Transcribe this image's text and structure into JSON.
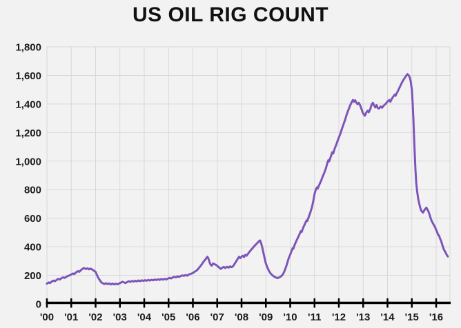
{
  "colors": {
    "background": "#f2f2f2",
    "grid": "#d8d8d8",
    "axis": "#000000",
    "text": "#1b1b1b",
    "line": "#7d55b9"
  },
  "chart_data": {
    "type": "line",
    "title": "US OIL RIG COUNT",
    "xlabel": "",
    "ylabel": "",
    "grid": true,
    "legend": false,
    "ylim": [
      0,
      1800
    ],
    "x_range": [
      2000,
      2016.6
    ],
    "y_ticks": [
      0,
      200,
      400,
      600,
      800,
      1000,
      1200,
      1400,
      1600,
      1800
    ],
    "y_tick_labels": [
      "0",
      "200",
      "400",
      "600",
      "800",
      "1,000",
      "1,200",
      "1,400",
      "1,600",
      "1,800"
    ],
    "x_ticks": [
      2000,
      2001,
      2002,
      2003,
      2004,
      2005,
      2006,
      2007,
      2008,
      2009,
      2010,
      2011,
      2012,
      2013,
      2014,
      2015,
      2016
    ],
    "x_tick_labels": [
      "'00",
      "'01",
      "'02",
      "'03",
      "'04",
      "'05",
      "'06",
      "'07",
      "'08",
      "'09",
      "'10",
      "'11",
      "'12",
      "'13",
      "'14",
      "'15",
      "'16"
    ],
    "series": [
      {
        "name": "US oil rig count",
        "color": "#7d55b9",
        "points": [
          [
            2000.0,
            142
          ],
          [
            2000.07,
            150
          ],
          [
            2000.13,
            146
          ],
          [
            2000.2,
            157
          ],
          [
            2000.27,
            163
          ],
          [
            2000.33,
            159
          ],
          [
            2000.4,
            168
          ],
          [
            2000.47,
            175
          ],
          [
            2000.53,
            171
          ],
          [
            2000.6,
            180
          ],
          [
            2000.67,
            186
          ],
          [
            2000.73,
            182
          ],
          [
            2000.8,
            190
          ],
          [
            2000.87,
            196
          ],
          [
            2000.93,
            200
          ],
          [
            2001.0,
            206
          ],
          [
            2001.07,
            213
          ],
          [
            2001.13,
            209
          ],
          [
            2001.2,
            221
          ],
          [
            2001.27,
            229
          ],
          [
            2001.33,
            225
          ],
          [
            2001.4,
            237
          ],
          [
            2001.47,
            246
          ],
          [
            2001.53,
            251
          ],
          [
            2001.6,
            244
          ],
          [
            2001.67,
            249
          ],
          [
            2001.73,
            242
          ],
          [
            2001.8,
            247
          ],
          [
            2001.87,
            240
          ],
          [
            2001.93,
            233
          ],
          [
            2002.0,
            224
          ],
          [
            2002.05,
            204
          ],
          [
            2002.1,
            186
          ],
          [
            2002.17,
            167
          ],
          [
            2002.23,
            152
          ],
          [
            2002.3,
            144
          ],
          [
            2002.37,
            139
          ],
          [
            2002.43,
            145
          ],
          [
            2002.5,
            138
          ],
          [
            2002.57,
            143
          ],
          [
            2002.63,
            136
          ],
          [
            2002.7,
            142
          ],
          [
            2002.77,
            136
          ],
          [
            2002.83,
            141
          ],
          [
            2002.9,
            137
          ],
          [
            2002.97,
            143
          ],
          [
            2003.03,
            148
          ],
          [
            2003.1,
            155
          ],
          [
            2003.17,
            150
          ],
          [
            2003.23,
            146
          ],
          [
            2003.3,
            153
          ],
          [
            2003.37,
            159
          ],
          [
            2003.43,
            154
          ],
          [
            2003.5,
            161
          ],
          [
            2003.57,
            156
          ],
          [
            2003.63,
            162
          ],
          [
            2003.7,
            158
          ],
          [
            2003.77,
            164
          ],
          [
            2003.83,
            159
          ],
          [
            2003.9,
            165
          ],
          [
            2003.97,
            161
          ],
          [
            2004.03,
            166
          ],
          [
            2004.1,
            162
          ],
          [
            2004.17,
            168
          ],
          [
            2004.23,
            163
          ],
          [
            2004.3,
            169
          ],
          [
            2004.37,
            165
          ],
          [
            2004.43,
            171
          ],
          [
            2004.5,
            167
          ],
          [
            2004.57,
            172
          ],
          [
            2004.63,
            168
          ],
          [
            2004.7,
            174
          ],
          [
            2004.77,
            170
          ],
          [
            2004.83,
            175
          ],
          [
            2004.9,
            171
          ],
          [
            2004.97,
            177
          ],
          [
            2005.03,
            182
          ],
          [
            2005.1,
            178
          ],
          [
            2005.17,
            185
          ],
          [
            2005.23,
            190
          ],
          [
            2005.3,
            186
          ],
          [
            2005.37,
            193
          ],
          [
            2005.43,
            189
          ],
          [
            2005.5,
            195
          ],
          [
            2005.57,
            200
          ],
          [
            2005.63,
            196
          ],
          [
            2005.7,
            202
          ],
          [
            2005.77,
            198
          ],
          [
            2005.83,
            205
          ],
          [
            2005.9,
            210
          ],
          [
            2005.97,
            214
          ],
          [
            2006.03,
            220
          ],
          [
            2006.1,
            228
          ],
          [
            2006.17,
            236
          ],
          [
            2006.23,
            248
          ],
          [
            2006.3,
            262
          ],
          [
            2006.37,
            278
          ],
          [
            2006.43,
            294
          ],
          [
            2006.5,
            308
          ],
          [
            2006.55,
            320
          ],
          [
            2006.6,
            330
          ],
          [
            2006.64,
            316
          ],
          [
            2006.68,
            294
          ],
          [
            2006.72,
            277
          ],
          [
            2006.77,
            268
          ],
          [
            2006.83,
            283
          ],
          [
            2006.9,
            277
          ],
          [
            2006.97,
            271
          ],
          [
            2007.03,
            262
          ],
          [
            2007.1,
            252
          ],
          [
            2007.15,
            245
          ],
          [
            2007.2,
            253
          ],
          [
            2007.27,
            259
          ],
          [
            2007.33,
            251
          ],
          [
            2007.4,
            260
          ],
          [
            2007.47,
            254
          ],
          [
            2007.53,
            262
          ],
          [
            2007.6,
            257
          ],
          [
            2007.67,
            268
          ],
          [
            2007.73,
            284
          ],
          [
            2007.8,
            303
          ],
          [
            2007.85,
            318
          ],
          [
            2007.9,
            330
          ],
          [
            2007.95,
            321
          ],
          [
            2008.0,
            330
          ],
          [
            2008.05,
            337
          ],
          [
            2008.1,
            328
          ],
          [
            2008.15,
            343
          ],
          [
            2008.2,
            337
          ],
          [
            2008.27,
            352
          ],
          [
            2008.33,
            366
          ],
          [
            2008.4,
            380
          ],
          [
            2008.47,
            394
          ],
          [
            2008.53,
            406
          ],
          [
            2008.6,
            418
          ],
          [
            2008.67,
            430
          ],
          [
            2008.72,
            440
          ],
          [
            2008.76,
            444
          ],
          [
            2008.8,
            428
          ],
          [
            2008.85,
            396
          ],
          [
            2008.9,
            358
          ],
          [
            2008.95,
            318
          ],
          [
            2009.0,
            282
          ],
          [
            2009.07,
            252
          ],
          [
            2009.13,
            230
          ],
          [
            2009.2,
            212
          ],
          [
            2009.27,
            200
          ],
          [
            2009.33,
            192
          ],
          [
            2009.4,
            186
          ],
          [
            2009.47,
            181
          ],
          [
            2009.53,
            184
          ],
          [
            2009.6,
            190
          ],
          [
            2009.67,
            200
          ],
          [
            2009.73,
            216
          ],
          [
            2009.8,
            244
          ],
          [
            2009.87,
            280
          ],
          [
            2009.93,
            315
          ],
          [
            2010.0,
            345
          ],
          [
            2010.05,
            368
          ],
          [
            2010.1,
            390
          ],
          [
            2010.13,
            386
          ],
          [
            2010.17,
            408
          ],
          [
            2010.23,
            432
          ],
          [
            2010.3,
            458
          ],
          [
            2010.37,
            482
          ],
          [
            2010.43,
            508
          ],
          [
            2010.47,
            504
          ],
          [
            2010.53,
            532
          ],
          [
            2010.6,
            558
          ],
          [
            2010.67,
            584
          ],
          [
            2010.7,
            580
          ],
          [
            2010.77,
            612
          ],
          [
            2010.83,
            642
          ],
          [
            2010.9,
            680
          ],
          [
            2010.95,
            722
          ],
          [
            2011.0,
            770
          ],
          [
            2011.05,
            798
          ],
          [
            2011.1,
            816
          ],
          [
            2011.13,
            808
          ],
          [
            2011.2,
            836
          ],
          [
            2011.27,
            862
          ],
          [
            2011.33,
            890
          ],
          [
            2011.4,
            918
          ],
          [
            2011.47,
            950
          ],
          [
            2011.53,
            988
          ],
          [
            2011.57,
            1006
          ],
          [
            2011.6,
            998
          ],
          [
            2011.67,
            1032
          ],
          [
            2011.73,
            1062
          ],
          [
            2011.77,
            1054
          ],
          [
            2011.83,
            1088
          ],
          [
            2011.9,
            1118
          ],
          [
            2011.95,
            1142
          ],
          [
            2012.0,
            1165
          ],
          [
            2012.07,
            1196
          ],
          [
            2012.13,
            1228
          ],
          [
            2012.2,
            1262
          ],
          [
            2012.27,
            1296
          ],
          [
            2012.33,
            1330
          ],
          [
            2012.4,
            1362
          ],
          [
            2012.47,
            1392
          ],
          [
            2012.53,
            1414
          ],
          [
            2012.58,
            1428
          ],
          [
            2012.62,
            1416
          ],
          [
            2012.67,
            1426
          ],
          [
            2012.72,
            1410
          ],
          [
            2012.77,
            1398
          ],
          [
            2012.82,
            1408
          ],
          [
            2012.87,
            1392
          ],
          [
            2012.93,
            1366
          ],
          [
            2012.97,
            1345
          ],
          [
            2013.02,
            1328
          ],
          [
            2013.07,
            1318
          ],
          [
            2013.13,
            1340
          ],
          [
            2013.18,
            1352
          ],
          [
            2013.23,
            1342
          ],
          [
            2013.3,
            1368
          ],
          [
            2013.35,
            1398
          ],
          [
            2013.4,
            1408
          ],
          [
            2013.45,
            1390
          ],
          [
            2013.5,
            1376
          ],
          [
            2013.55,
            1392
          ],
          [
            2013.6,
            1372
          ],
          [
            2013.65,
            1368
          ],
          [
            2013.72,
            1382
          ],
          [
            2013.78,
            1374
          ],
          [
            2013.85,
            1390
          ],
          [
            2013.92,
            1400
          ],
          [
            2013.97,
            1410
          ],
          [
            2014.02,
            1420
          ],
          [
            2014.07,
            1428
          ],
          [
            2014.12,
            1416
          ],
          [
            2014.17,
            1434
          ],
          [
            2014.23,
            1450
          ],
          [
            2014.3,
            1466
          ],
          [
            2014.33,
            1458
          ],
          [
            2014.4,
            1482
          ],
          [
            2014.47,
            1506
          ],
          [
            2014.53,
            1528
          ],
          [
            2014.6,
            1552
          ],
          [
            2014.67,
            1572
          ],
          [
            2014.73,
            1588
          ],
          [
            2014.78,
            1600
          ],
          [
            2014.82,
            1609
          ],
          [
            2014.87,
            1600
          ],
          [
            2014.91,
            1588
          ],
          [
            2014.95,
            1562
          ],
          [
            2015.0,
            1500
          ],
          [
            2015.03,
            1420
          ],
          [
            2015.06,
            1310
          ],
          [
            2015.09,
            1180
          ],
          [
            2015.12,
            1050
          ],
          [
            2015.15,
            940
          ],
          [
            2015.18,
            850
          ],
          [
            2015.22,
            786
          ],
          [
            2015.26,
            738
          ],
          [
            2015.3,
            706
          ],
          [
            2015.34,
            678
          ],
          [
            2015.38,
            656
          ],
          [
            2015.42,
            645
          ],
          [
            2015.46,
            640
          ],
          [
            2015.5,
            652
          ],
          [
            2015.55,
            664
          ],
          [
            2015.6,
            674
          ],
          [
            2015.64,
            662
          ],
          [
            2015.68,
            648
          ],
          [
            2015.72,
            630
          ],
          [
            2015.76,
            608
          ],
          [
            2015.8,
            588
          ],
          [
            2015.85,
            570
          ],
          [
            2015.9,
            554
          ],
          [
            2015.95,
            540
          ],
          [
            2016.0,
            518
          ],
          [
            2016.05,
            498
          ],
          [
            2016.08,
            484
          ],
          [
            2016.12,
            478
          ],
          [
            2016.16,
            458
          ],
          [
            2016.2,
            442
          ],
          [
            2016.24,
            420
          ],
          [
            2016.28,
            398
          ],
          [
            2016.32,
            380
          ],
          [
            2016.36,
            368
          ],
          [
            2016.4,
            355
          ],
          [
            2016.44,
            342
          ],
          [
            2016.48,
            332
          ]
        ]
      }
    ]
  }
}
